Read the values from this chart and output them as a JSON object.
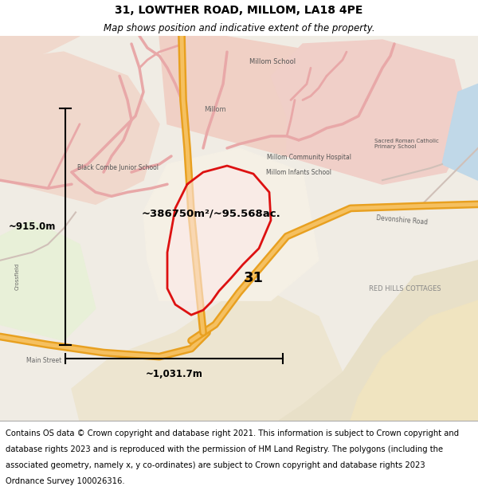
{
  "title_line1": "31, LOWTHER ROAD, MILLOM, LA18 4PE",
  "title_line2": "Map shows position and indicative extent of the property.",
  "area_text": "~386750m²/~95.568ac.",
  "height_text": "~915.0m",
  "width_text": "~1,031.7m",
  "label_31": "31",
  "copyright_text": "Contains OS data © Crown copyright and database right 2021. This information is subject to Crown copyright and database rights 2023 and is reproduced with the permission of HM Land Registry. The polygons (including the associated geometry, namely x, y co-ordinates) are subject to Crown copyright and database rights 2023 Ordnance Survey 100026316.",
  "bg_color": "#f5f0eb",
  "title_fontsize": 10,
  "subtitle_fontsize": 8.5,
  "copyright_fontsize": 7.2
}
